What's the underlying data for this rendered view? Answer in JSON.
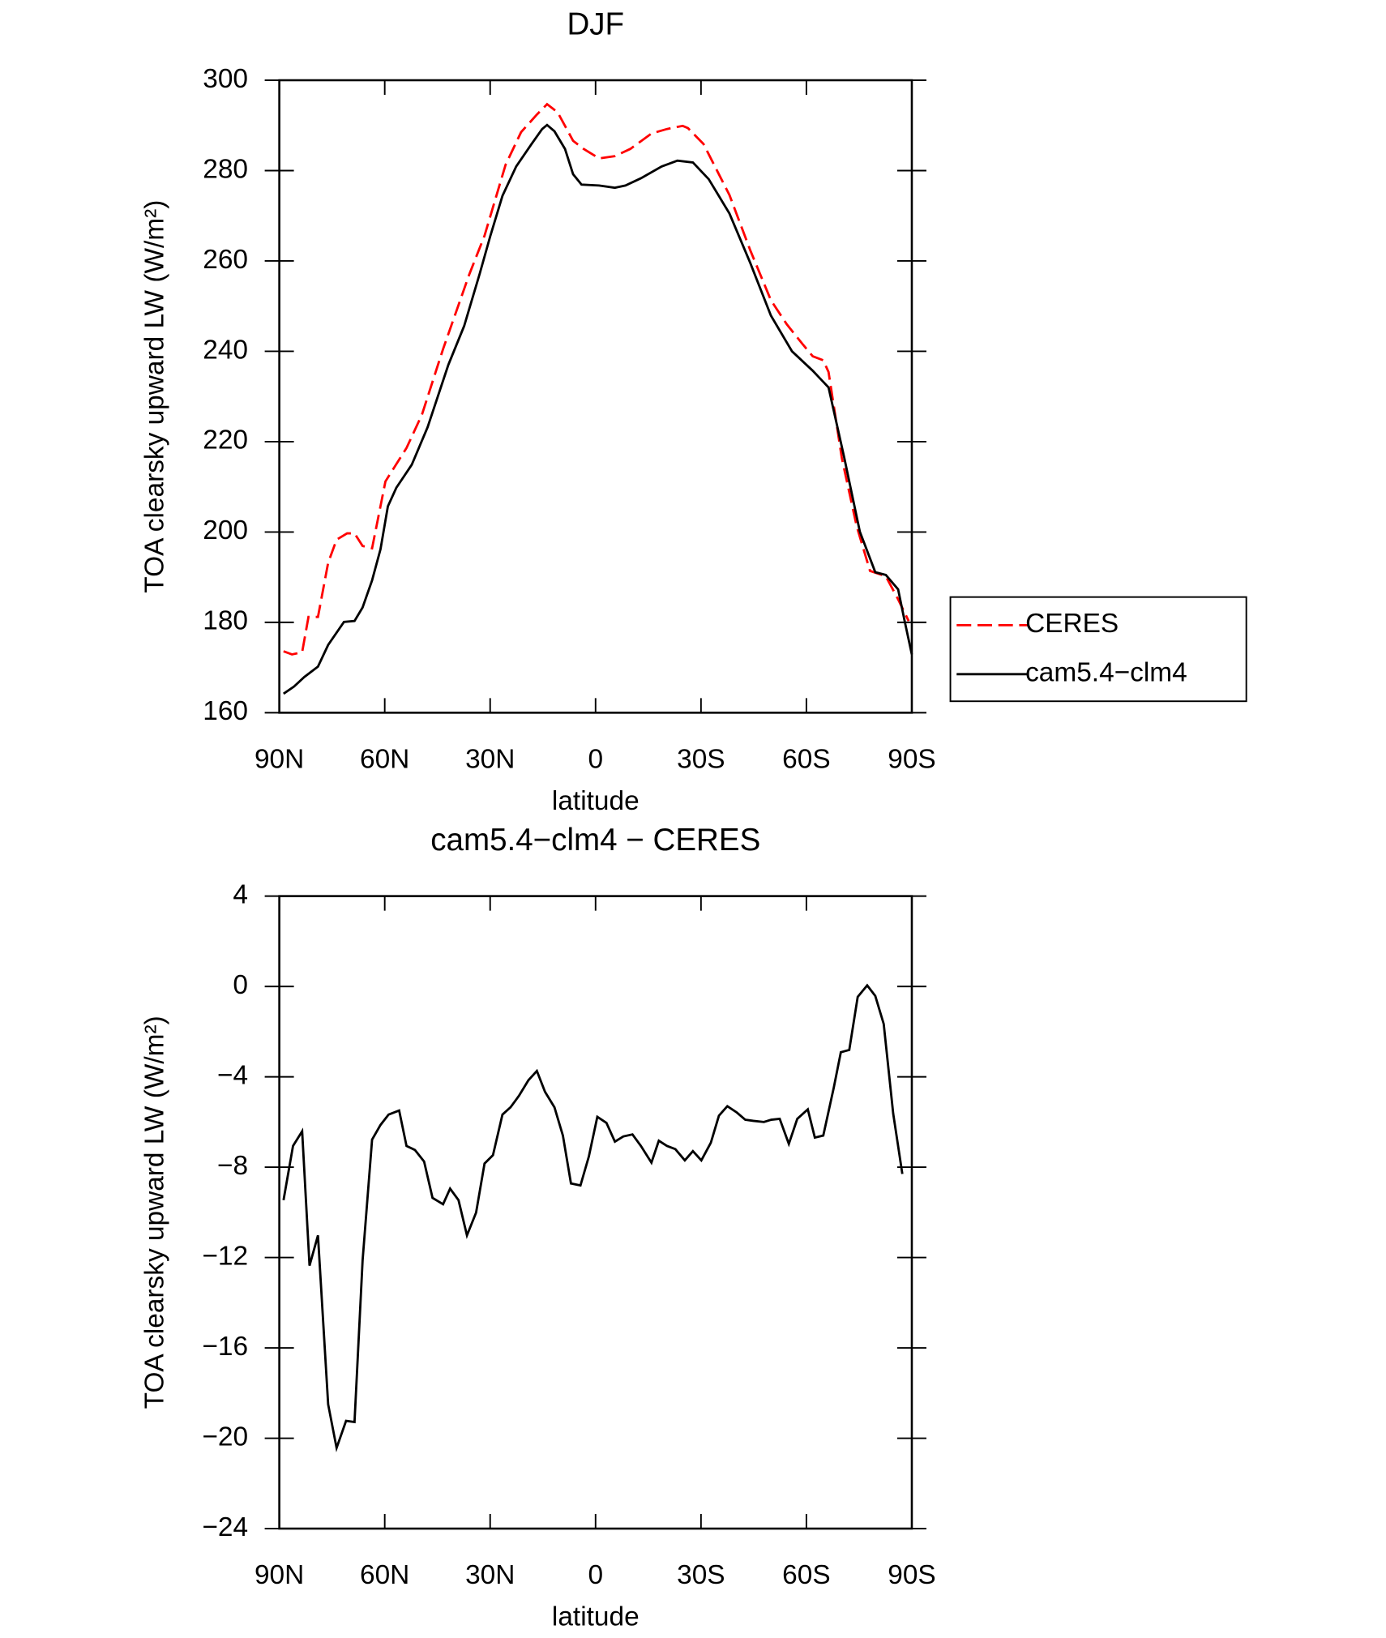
{
  "chart_data": [
    {
      "type": "line",
      "title": "DJF",
      "xlabel": "latitude",
      "ylabel": "TOA clearsky upward LW (W/m²)",
      "xlim": [
        90,
        -90
      ],
      "ylim": [
        160,
        300
      ],
      "xticks": [
        {
          "value": 90,
          "label": "90N"
        },
        {
          "value": 60,
          "label": "60N"
        },
        {
          "value": 30,
          "label": "30N"
        },
        0,
        {
          "value": -30,
          "label": "30S"
        },
        {
          "value": -60,
          "label": "60S"
        },
        {
          "value": -90,
          "label": "90S"
        }
      ],
      "yticks": [
        160,
        180,
        200,
        220,
        240,
        260,
        280,
        300
      ],
      "legend": "right",
      "series": [
        {
          "name": "CERES",
          "color": "#ff0000",
          "dash": true,
          "x": [
            88.8,
            86.4,
            83.5,
            81.7,
            79.0,
            76.1,
            73.7,
            70.7,
            68.6,
            66.3,
            63.6,
            59.8,
            53.8,
            49.4,
            43.4,
            36.0,
            31.6,
            25.6,
            21.2,
            16.7,
            13.8,
            10.8,
            6.4,
            3.4,
            -1.0,
            -5.5,
            -9.9,
            -15.9,
            -20.3,
            -24.8,
            -26.3,
            -30.7,
            -38.1,
            -44.0,
            -49.9,
            -54.4,
            -58.9,
            -61.8,
            -64.8,
            -66.3,
            -70.1,
            -74.3,
            -78.1,
            -82.6,
            -86.1,
            -89.1
          ],
          "values": [
            173.6,
            172.9,
            173.4,
            181.2,
            181.2,
            193.2,
            198.3,
            199.7,
            199.7,
            196.9,
            196.4,
            211.2,
            218.6,
            226.0,
            240.5,
            256.9,
            265.6,
            281.3,
            288.5,
            292.4,
            294.7,
            292.9,
            286.6,
            284.8,
            282.7,
            283.2,
            284.8,
            288.2,
            289.2,
            289.9,
            289.4,
            285.9,
            274.6,
            262.4,
            251.3,
            246.0,
            241.6,
            238.9,
            238.0,
            235.4,
            216.3,
            201.3,
            191.4,
            190.2,
            185.1,
            180.3
          ]
        },
        {
          "name": "cam5.4−clm4",
          "color": "#000000",
          "dash": false,
          "x": [
            88.8,
            85.8,
            82.9,
            79.0,
            76.1,
            71.6,
            68.6,
            66.3,
            63.6,
            61.2,
            59.1,
            56.7,
            52.3,
            47.8,
            41.9,
            37.4,
            33.0,
            30.0,
            26.5,
            22.6,
            18.2,
            15.2,
            13.8,
            11.7,
            8.7,
            6.4,
            4.0,
            -1.0,
            -5.5,
            -8.5,
            -12.9,
            -18.8,
            -23.3,
            -27.7,
            -32.2,
            -38.1,
            -44.0,
            -49.9,
            -55.9,
            -61.8,
            -66.3,
            -70.7,
            -75.2,
            -79.6,
            -82.6,
            -86.1,
            -87.9,
            -90
          ],
          "values": [
            164.2,
            165.8,
            167.9,
            170.2,
            175.0,
            180.1,
            180.3,
            183.3,
            189.3,
            196.2,
            205.7,
            209.8,
            214.9,
            223.2,
            237.0,
            245.6,
            257.1,
            265.4,
            274.4,
            280.9,
            285.9,
            289.2,
            290.1,
            288.7,
            284.8,
            279.2,
            276.9,
            276.7,
            276.2,
            276.7,
            278.3,
            280.9,
            282.2,
            281.8,
            278.1,
            270.5,
            259.6,
            247.9,
            240.0,
            235.7,
            232.0,
            216.7,
            200.1,
            191.1,
            190.5,
            187.3,
            180.5,
            172.9
          ]
        }
      ]
    },
    {
      "type": "line",
      "title": "cam5.4−clm4 − CERES",
      "xlabel": "latitude",
      "ylabel": "TOA clearsky upward LW (W/m²)",
      "xlim": [
        90,
        -90
      ],
      "ylim": [
        -24,
        4
      ],
      "xticks": [
        {
          "value": 90,
          "label": "90N"
        },
        {
          "value": 60,
          "label": "60N"
        },
        {
          "value": 30,
          "label": "30N"
        },
        0,
        {
          "value": -30,
          "label": "30S"
        },
        {
          "value": -60,
          "label": "60S"
        },
        {
          "value": -90,
          "label": "90S"
        }
      ],
      "yticks": [
        {
          "value": -24,
          "label": "−24"
        },
        {
          "value": -20,
          "label": "−20"
        },
        {
          "value": -16,
          "label": "−16"
        },
        {
          "value": -12,
          "label": "−12"
        },
        {
          "value": -8,
          "label": "−8"
        },
        {
          "value": -4,
          "label": "−4"
        },
        0,
        4
      ],
      "series": [
        {
          "color": "#000000",
          "dash": false,
          "x": [
            88.8,
            86.1,
            83.5,
            81.4,
            79.0,
            76.1,
            73.7,
            71.0,
            68.6,
            66.3,
            63.6,
            61.2,
            58.9,
            55.9,
            53.8,
            51.4,
            48.8,
            46.4,
            43.4,
            41.4,
            39.0,
            36.6,
            34.0,
            31.6,
            29.2,
            26.5,
            24.2,
            21.8,
            19.1,
            16.7,
            14.4,
            11.7,
            9.3,
            7.0,
            4.3,
            1.9,
            -0.5,
            -3.1,
            -5.5,
            -7.9,
            -10.5,
            -12.9,
            -15.9,
            -18.0,
            -20.3,
            -22.7,
            -25.4,
            -27.7,
            -30.1,
            -32.8,
            -35.1,
            -37.5,
            -40.2,
            -42.6,
            -44.9,
            -47.9,
            -50.0,
            -52.4,
            -55.0,
            -57.4,
            -60.4,
            -62.4,
            -64.8,
            -67.8,
            -69.8,
            -72.2,
            -74.6,
            -77.3,
            -79.6,
            -82.0,
            -84.7,
            -87.3
          ],
          "values": [
            -9.46,
            -7.06,
            -6.41,
            -12.36,
            -11.02,
            -18.5,
            -20.43,
            -19.23,
            -19.28,
            -12.13,
            -6.78,
            -6.13,
            -5.67,
            -5.49,
            -7.06,
            -7.24,
            -7.75,
            -9.36,
            -9.64,
            -8.95,
            -9.46,
            -11.02,
            -10.01,
            -7.84,
            -7.47,
            -5.67,
            -5.35,
            -4.84,
            -4.15,
            -3.74,
            -4.66,
            -5.35,
            -6.6,
            -8.72,
            -8.81,
            -7.52,
            -5.77,
            -6.04,
            -6.87,
            -6.64,
            -6.55,
            -7.06,
            -7.8,
            -6.83,
            -7.06,
            -7.2,
            -7.7,
            -7.29,
            -7.7,
            -6.92,
            -5.72,
            -5.3,
            -5.58,
            -5.9,
            -5.95,
            -6.0,
            -5.9,
            -5.86,
            -6.97,
            -5.86,
            -5.44,
            -6.69,
            -6.6,
            -4.47,
            -2.91,
            -2.81,
            -0.46,
            0.05,
            -0.42,
            -1.66,
            -5.63,
            -8.3
          ]
        }
      ]
    }
  ]
}
